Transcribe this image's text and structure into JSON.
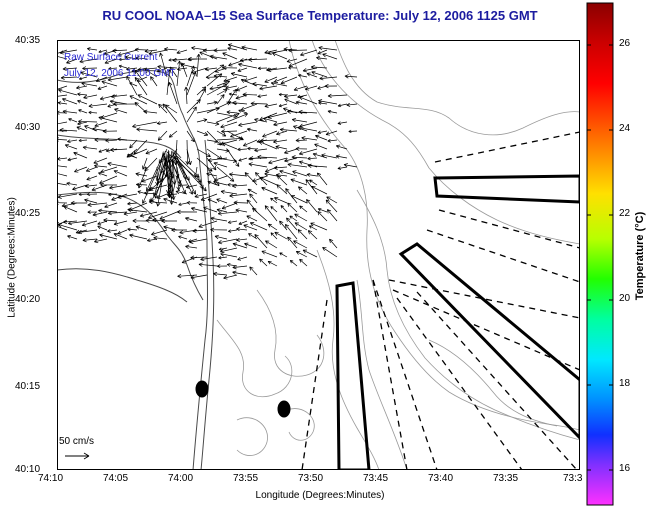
{
  "map": {
    "title": "RU COOL  NOAA–15  Sea Surface Temperature:  July 12, 2006 1125 GMT",
    "xlabel": "Longitude (Degrees:Minutes)",
    "ylabel": "Latitude (Degrees:Minutes)",
    "legend_line1": "Raw Surface Current",
    "legend_line2": "July 12, 2006 11:00 GMT",
    "scale_label": "50 cm/s",
    "lon_ticks": [
      "74:10",
      "74:05",
      "74:00",
      "73:55",
      "73:50",
      "73:45",
      "73:40",
      "73:35",
      "73:3"
    ],
    "lat_ticks": [
      "40:35",
      "40:30",
      "40:25",
      "40:20",
      "40:15",
      "40:10"
    ],
    "colors": {
      "title": "#1c1ca0",
      "legend": "#2a2ad0",
      "contour": "#9a9a9a"
    }
  },
  "colorbar": {
    "label": "Temperature (°C)",
    "ticks": [
      "26",
      "24",
      "22",
      "20",
      "18",
      "16"
    ],
    "range": [
      15,
      27.5
    ]
  }
}
